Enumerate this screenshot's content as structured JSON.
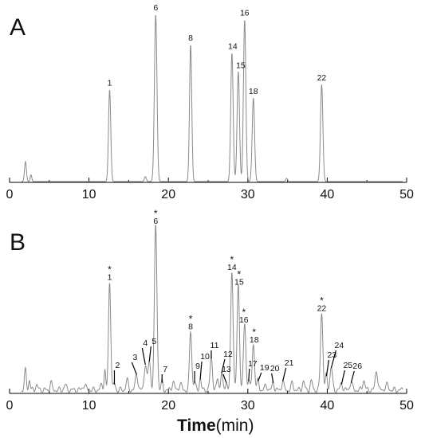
{
  "chart_data": [
    {
      "type": "line",
      "panel_label": "A",
      "xlim": [
        0,
        50
      ],
      "ylim": [
        0,
        1.0
      ],
      "xticks": [
        0,
        10,
        20,
        30,
        40,
        50
      ],
      "grid": false,
      "peaks": [
        {
          "label": "",
          "x": 2.0,
          "h": 0.12,
          "w": 0.12
        },
        {
          "label": "",
          "x": 2.7,
          "h": 0.04,
          "w": 0.1
        },
        {
          "label": "1",
          "x": 12.6,
          "h": 0.55,
          "w": 0.14
        },
        {
          "label": "",
          "x": 17.1,
          "h": 0.03,
          "w": 0.12
        },
        {
          "label": "6",
          "x": 18.4,
          "h": 1.0,
          "w": 0.16
        },
        {
          "label": "8",
          "x": 22.8,
          "h": 0.82,
          "w": 0.14
        },
        {
          "label": "14",
          "x": 28.0,
          "h": 0.77,
          "w": 0.15
        },
        {
          "label": "15",
          "x": 28.8,
          "h": 0.66,
          "w": 0.15
        },
        {
          "label": "16",
          "x": 29.6,
          "h": 0.97,
          "w": 0.15
        },
        {
          "label": "18",
          "x": 30.7,
          "h": 0.5,
          "w": 0.15
        },
        {
          "label": "",
          "x": 34.9,
          "h": 0.02,
          "w": 0.12
        },
        {
          "label": "22",
          "x": 39.3,
          "h": 0.58,
          "w": 0.15
        }
      ]
    },
    {
      "type": "line",
      "panel_label": "B",
      "xlim": [
        0,
        50
      ],
      "ylim": [
        0,
        1.0
      ],
      "xticks": [
        0,
        10,
        20,
        30,
        40,
        50
      ],
      "xlabel": "Time",
      "xlabel_unit": "(min)",
      "grid": false,
      "peaks": [
        {
          "label": "",
          "x": 2.0,
          "h": 0.12,
          "w": 0.12
        },
        {
          "label": "",
          "x": 2.5,
          "h": 0.06,
          "w": 0.1
        },
        {
          "label": "",
          "x": 3.4,
          "h": 0.03,
          "w": 0.15
        },
        {
          "label": "",
          "x": 5.2,
          "h": 0.05,
          "w": 0.12
        },
        {
          "label": "",
          "x": 7.0,
          "h": 0.03,
          "w": 0.15
        },
        {
          "label": "",
          "x": 9.4,
          "h": 0.03,
          "w": 0.2
        },
        {
          "label": "",
          "x": 11.6,
          "h": 0.03,
          "w": 0.15
        },
        {
          "label": "",
          "x": 12.0,
          "h": 0.12,
          "w": 0.1
        },
        {
          "label": "1",
          "x": 12.6,
          "h": 0.66,
          "w": 0.14,
          "star": true
        },
        {
          "label": "2",
          "x": 13.2,
          "h": 0.04,
          "w": 0.12
        },
        {
          "label": "",
          "x": 14.8,
          "h": 0.06,
          "w": 0.15
        },
        {
          "label": "3",
          "x": 16.0,
          "h": 0.1,
          "w": 0.15
        },
        {
          "label": "4",
          "x": 17.1,
          "h": 0.16,
          "w": 0.15
        },
        {
          "label": "5",
          "x": 17.6,
          "h": 0.18,
          "w": 0.15
        },
        {
          "label": "6",
          "x": 18.4,
          "h": 1.0,
          "w": 0.16,
          "star": true
        },
        {
          "label": "7",
          "x": 19.2,
          "h": 0.05,
          "w": 0.12
        },
        {
          "label": "",
          "x": 20.6,
          "h": 0.05,
          "w": 0.15
        },
        {
          "label": "",
          "x": 21.5,
          "h": 0.04,
          "w": 0.15
        },
        {
          "label": "8",
          "x": 22.8,
          "h": 0.36,
          "w": 0.14,
          "star": true
        },
        {
          "label": "9",
          "x": 23.3,
          "h": 0.05,
          "w": 0.12
        },
        {
          "label": "10",
          "x": 24.0,
          "h": 0.07,
          "w": 0.12
        },
        {
          "label": "11",
          "x": 25.4,
          "h": 0.2,
          "w": 0.15
        },
        {
          "label": "",
          "x": 26.2,
          "h": 0.07,
          "w": 0.12
        },
        {
          "label": "12",
          "x": 26.7,
          "h": 0.11,
          "w": 0.12
        },
        {
          "label": "13",
          "x": 27.3,
          "h": 0.05,
          "w": 0.12
        },
        {
          "label": "14",
          "x": 28.0,
          "h": 0.72,
          "w": 0.15,
          "star": true
        },
        {
          "label": "15",
          "x": 28.8,
          "h": 0.63,
          "w": 0.15,
          "star": true
        },
        {
          "label": "16",
          "x": 29.6,
          "h": 0.4,
          "w": 0.15,
          "star": true
        },
        {
          "label": "17",
          "x": 30.1,
          "h": 0.06,
          "w": 0.12
        },
        {
          "label": "18",
          "x": 30.7,
          "h": 0.28,
          "w": 0.15,
          "star": true
        },
        {
          "label": "19",
          "x": 31.3,
          "h": 0.06,
          "w": 0.12
        },
        {
          "label": "",
          "x": 32.3,
          "h": 0.03,
          "w": 0.15
        },
        {
          "label": "20",
          "x": 33.2,
          "h": 0.05,
          "w": 0.12
        },
        {
          "label": "21",
          "x": 34.4,
          "h": 0.06,
          "w": 0.12
        },
        {
          "label": "",
          "x": 35.6,
          "h": 0.04,
          "w": 0.15
        },
        {
          "label": "",
          "x": 37.0,
          "h": 0.05,
          "w": 0.15
        },
        {
          "label": "",
          "x": 38.0,
          "h": 0.05,
          "w": 0.15
        },
        {
          "label": "22",
          "x": 39.3,
          "h": 0.47,
          "w": 0.15,
          "star": true
        },
        {
          "label": "23",
          "x": 39.9,
          "h": 0.09,
          "w": 0.12
        },
        {
          "label": "24",
          "x": 40.5,
          "h": 0.14,
          "w": 0.15
        },
        {
          "label": "25",
          "x": 41.8,
          "h": 0.04,
          "w": 0.15
        },
        {
          "label": "26",
          "x": 43.0,
          "h": 0.05,
          "w": 0.15
        },
        {
          "label": "",
          "x": 44.6,
          "h": 0.06,
          "w": 0.15
        },
        {
          "label": "",
          "x": 46.2,
          "h": 0.12,
          "w": 0.15
        },
        {
          "label": "",
          "x": 47.5,
          "h": 0.03,
          "w": 0.2
        }
      ]
    }
  ],
  "colors": {
    "trace": "#8a8a8a",
    "axis": "#000000",
    "text": "#111111"
  }
}
